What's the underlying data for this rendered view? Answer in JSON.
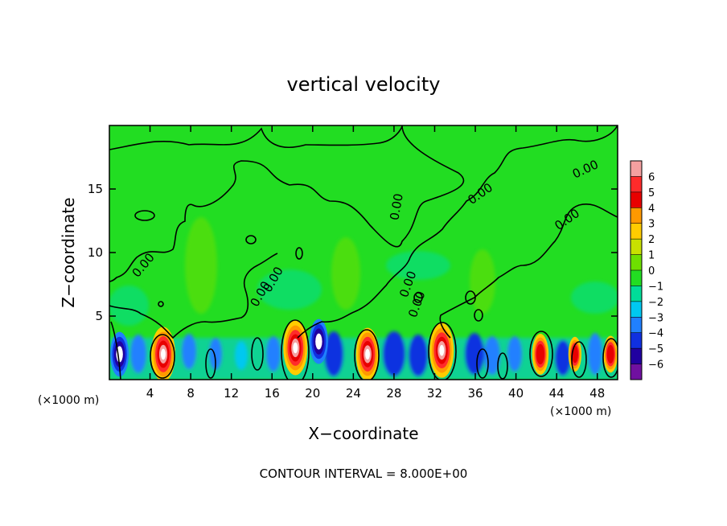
{
  "chart_data": {
    "type": "heatmap",
    "title": "vertical velocity",
    "xlabel": "X−coordinate",
    "ylabel": "Z−coordinate",
    "x_unit_label": "(×1000 m)",
    "x_unit_label_right": "(×1000 m)",
    "footer": "CONTOUR INTERVAL = 8.000E+00",
    "xlim": [
      0,
      50
    ],
    "ylim": [
      0,
      20
    ],
    "x_ticks": [
      4,
      8,
      12,
      16,
      20,
      24,
      28,
      32,
      36,
      40,
      44,
      48
    ],
    "y_ticks": [
      5,
      10,
      15
    ],
    "contour_labels": [
      "0.00",
      "0.00",
      "0.00",
      "0.00",
      "0.00",
      "0.00",
      "0.00",
      "0.00",
      "0.00"
    ],
    "colorbar": {
      "levels": [
        6,
        5,
        4,
        3,
        2,
        1,
        0,
        -1,
        -2,
        -3,
        -4,
        -5,
        -6
      ],
      "level_labels": [
        "6",
        "5",
        "4",
        "3",
        "2",
        "1",
        "0",
        "−1",
        "−2",
        "−3",
        "−4",
        "−5",
        "−6"
      ],
      "colors": [
        "#f4a0a0",
        "#ff2b2b",
        "#e80000",
        "#ff9900",
        "#ffcc00",
        "#c8e000",
        "#6ee000",
        "#22dd22",
        "#00dd99",
        "#00c8f0",
        "#2080ff",
        "#1030e0",
        "#2000a0",
        "#7010a0"
      ]
    },
    "updrafts": [
      {
        "x": 1.0,
        "z": 2.0,
        "w": -8
      },
      {
        "x": 5.3,
        "z": 2.0,
        "w": 13
      },
      {
        "x": 18.3,
        "z": 2.5,
        "w": 13
      },
      {
        "x": 20.6,
        "z": 3.0,
        "w": -8
      },
      {
        "x": 25.4,
        "z": 2.0,
        "w": 12
      },
      {
        "x": 32.7,
        "z": 2.3,
        "w": 13
      },
      {
        "x": 42.4,
        "z": 2.0,
        "w": 6
      },
      {
        "x": 45.8,
        "z": 2.0,
        "w": 3
      },
      {
        "x": 49.3,
        "z": 2.0,
        "w": 4
      }
    ]
  }
}
